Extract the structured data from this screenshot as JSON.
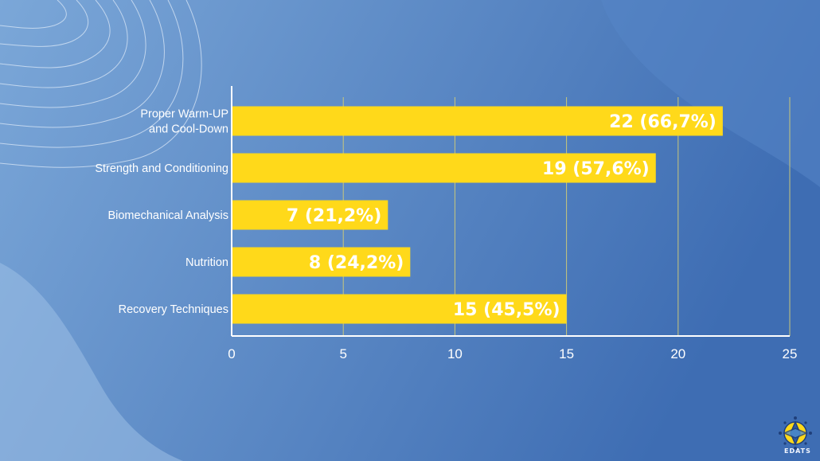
{
  "colors": {
    "bg_left": "#7aa6d8",
    "bg_right": "#3f6fb5",
    "bar": "#ffd91a",
    "axis": "#ffffff",
    "grid": "#c9c77a"
  },
  "logo": {
    "text": "EDATS",
    "icon": "edats-logo-icon"
  },
  "chart_data": {
    "type": "bar",
    "orientation": "horizontal",
    "categories": [
      "Proper Warm-UP and Cool-Down",
      "Strength and Conditioning",
      "Biomechanical Analysis",
      "Nutrition",
      "Recovery Techniques"
    ],
    "category_lines": [
      [
        "Proper Warm-UP",
        "and Cool-Down"
      ],
      [
        "Strength and Conditioning"
      ],
      [
        "Biomechanical Analysis"
      ],
      [
        "Nutrition"
      ],
      [
        "Recovery Techniques"
      ]
    ],
    "values": [
      22,
      19,
      7,
      8,
      15
    ],
    "data_labels": [
      "22 (66,7%)",
      "19 (57,6%)",
      "7 (21,2%)",
      "8 (24,2%)",
      "15 (45,5%)"
    ],
    "xlim": [
      0,
      25
    ],
    "xticks": [
      "0",
      "5",
      "10",
      "15",
      "20",
      "25"
    ],
    "grid": "vertical",
    "title": "",
    "xlabel": "",
    "ylabel": ""
  }
}
